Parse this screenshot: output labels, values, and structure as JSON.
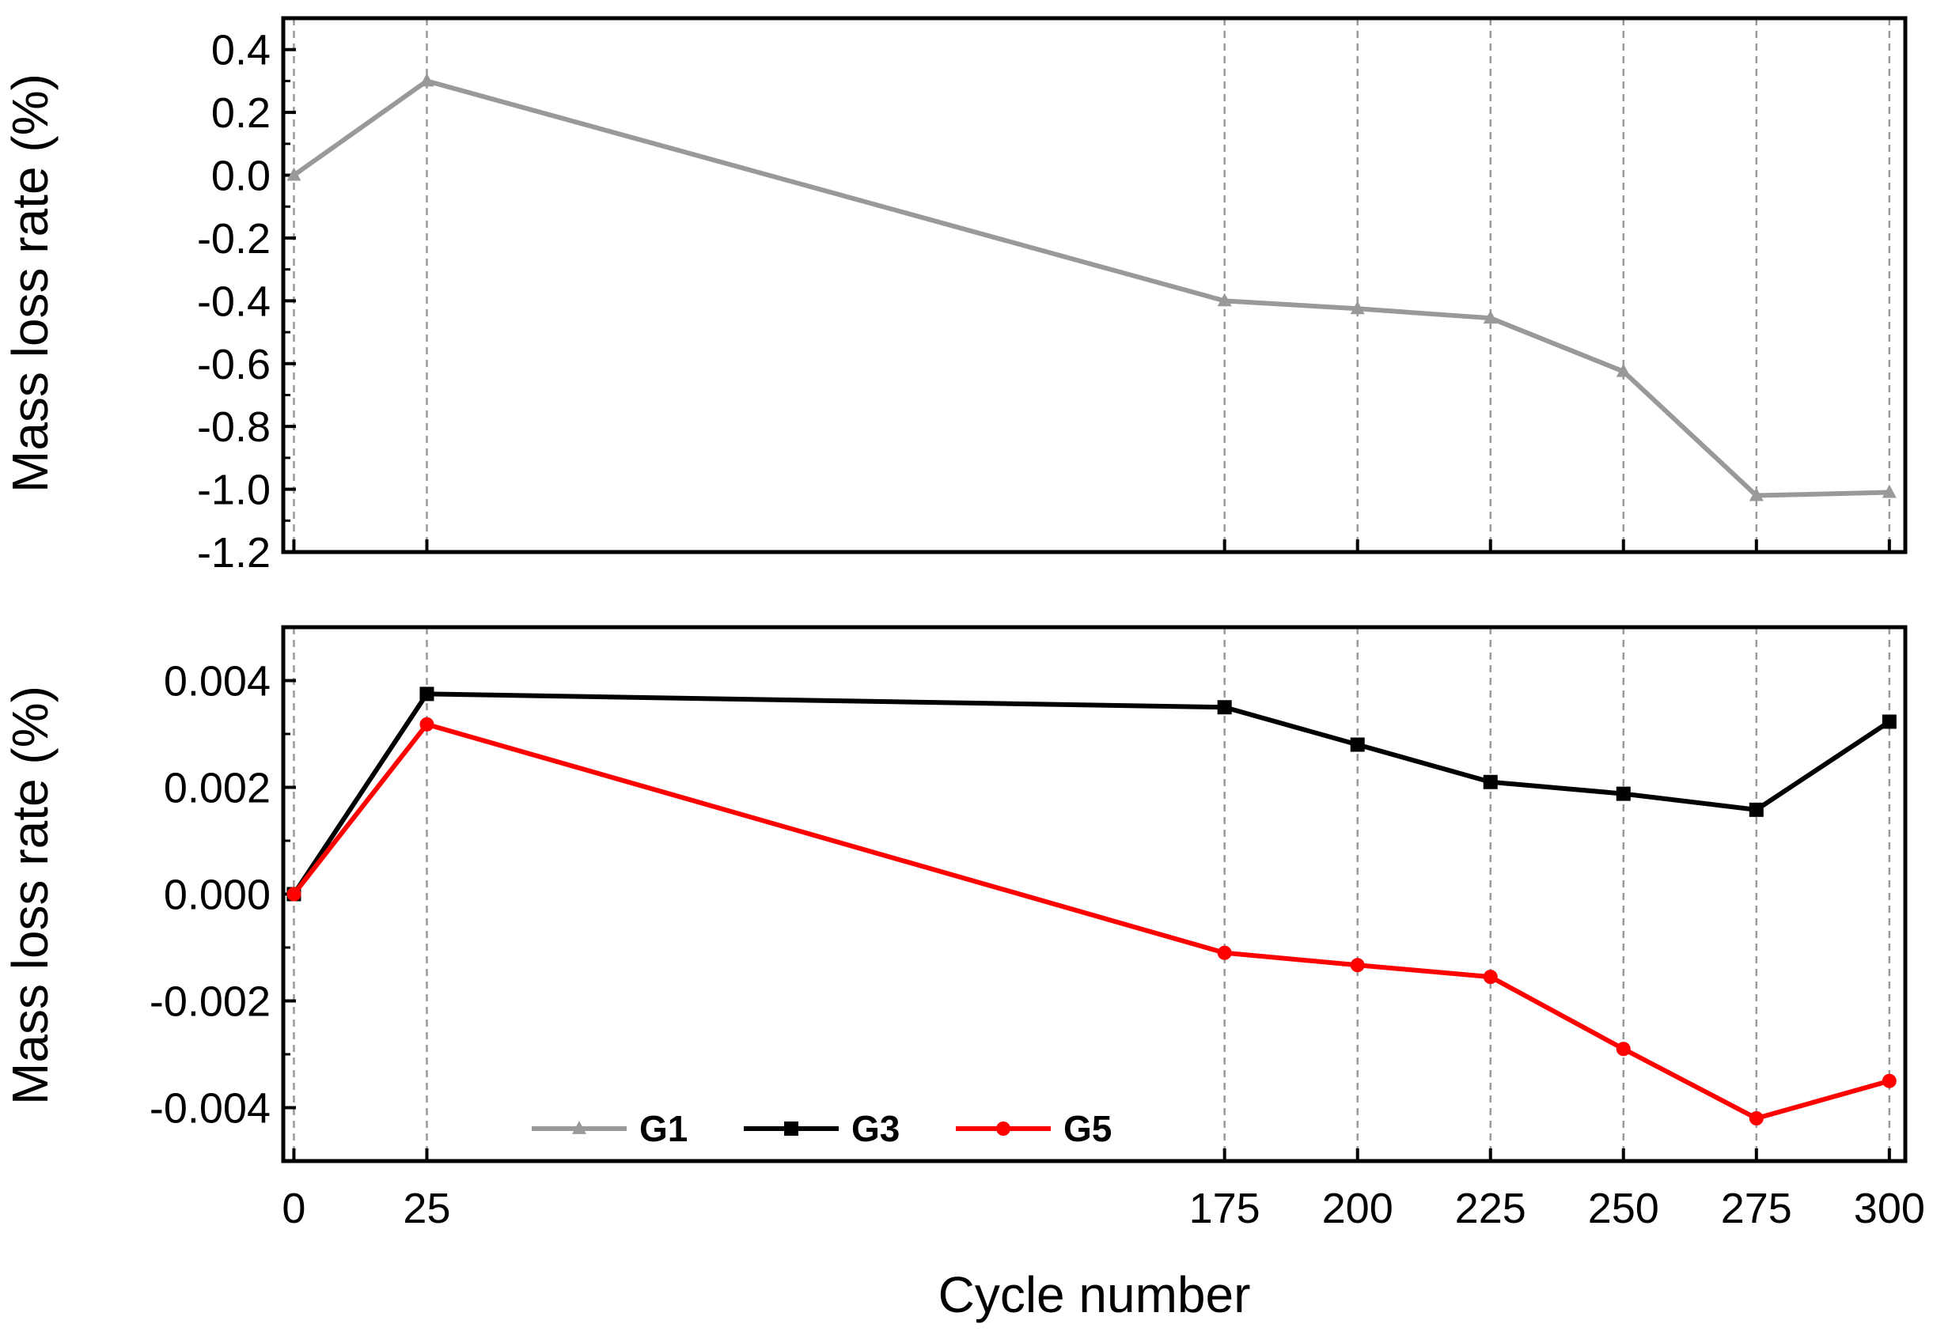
{
  "chart_data": [
    {
      "type": "line",
      "panel": "top",
      "title": "",
      "xlabel": "",
      "ylabel": "Mass loss rate (%)",
      "xlim": [
        -2,
        303
      ],
      "ylim": [
        -1.2,
        0.5
      ],
      "x": [
        0,
        25,
        175,
        200,
        225,
        250,
        275,
        300
      ],
      "y_ticks": [
        0.4,
        0.2,
        0.0,
        -0.2,
        -0.4,
        -0.6,
        -0.8,
        -1.0,
        -1.2
      ],
      "y_tick_labels": [
        "0.4",
        "0.2",
        "0.0",
        "-0.2",
        "-0.4",
        "-0.6",
        "-0.8",
        "-1.0",
        "-1.2"
      ],
      "grid": "vertical dashed at data points",
      "series": [
        {
          "name": "G1",
          "color": "#999999",
          "marker": "triangle",
          "values": [
            0.0,
            0.3,
            -0.4,
            -0.425,
            -0.455,
            -0.625,
            -1.02,
            -1.01
          ]
        }
      ]
    },
    {
      "type": "line",
      "panel": "bottom",
      "title": "",
      "xlabel": "Cycle number",
      "ylabel": "Mass loss rate (%)",
      "xlim": [
        -2,
        303
      ],
      "ylim": [
        -0.005,
        0.005
      ],
      "x": [
        0,
        25,
        175,
        200,
        225,
        250,
        275,
        300
      ],
      "x_tick_labels": [
        "0",
        "25",
        "175",
        "200",
        "225",
        "250",
        "275",
        "300"
      ],
      "y_ticks": [
        0.004,
        0.002,
        0.0,
        -0.002,
        -0.004
      ],
      "y_tick_labels": [
        "0.004",
        "0.002",
        "0.000",
        "-0.002",
        "-0.004"
      ],
      "grid": "vertical dashed at data points",
      "legend_position": "bottom-left",
      "series": [
        {
          "name": "G3",
          "color": "#000000",
          "marker": "square",
          "values": [
            0.0,
            0.00375,
            0.0035,
            0.0028,
            0.0021,
            0.00188,
            0.00158,
            0.00323
          ]
        },
        {
          "name": "G5",
          "color": "#ff0000",
          "marker": "circle",
          "values": [
            0.0,
            0.00318,
            -0.0011,
            -0.00133,
            -0.00155,
            -0.0029,
            -0.0042,
            -0.0035
          ]
        }
      ]
    }
  ],
  "legend": {
    "entries": [
      {
        "name": "G1",
        "color": "#999999",
        "marker": "triangle"
      },
      {
        "name": "G3",
        "color": "#000000",
        "marker": "square"
      },
      {
        "name": "G5",
        "color": "#ff0000",
        "marker": "circle"
      }
    ]
  }
}
